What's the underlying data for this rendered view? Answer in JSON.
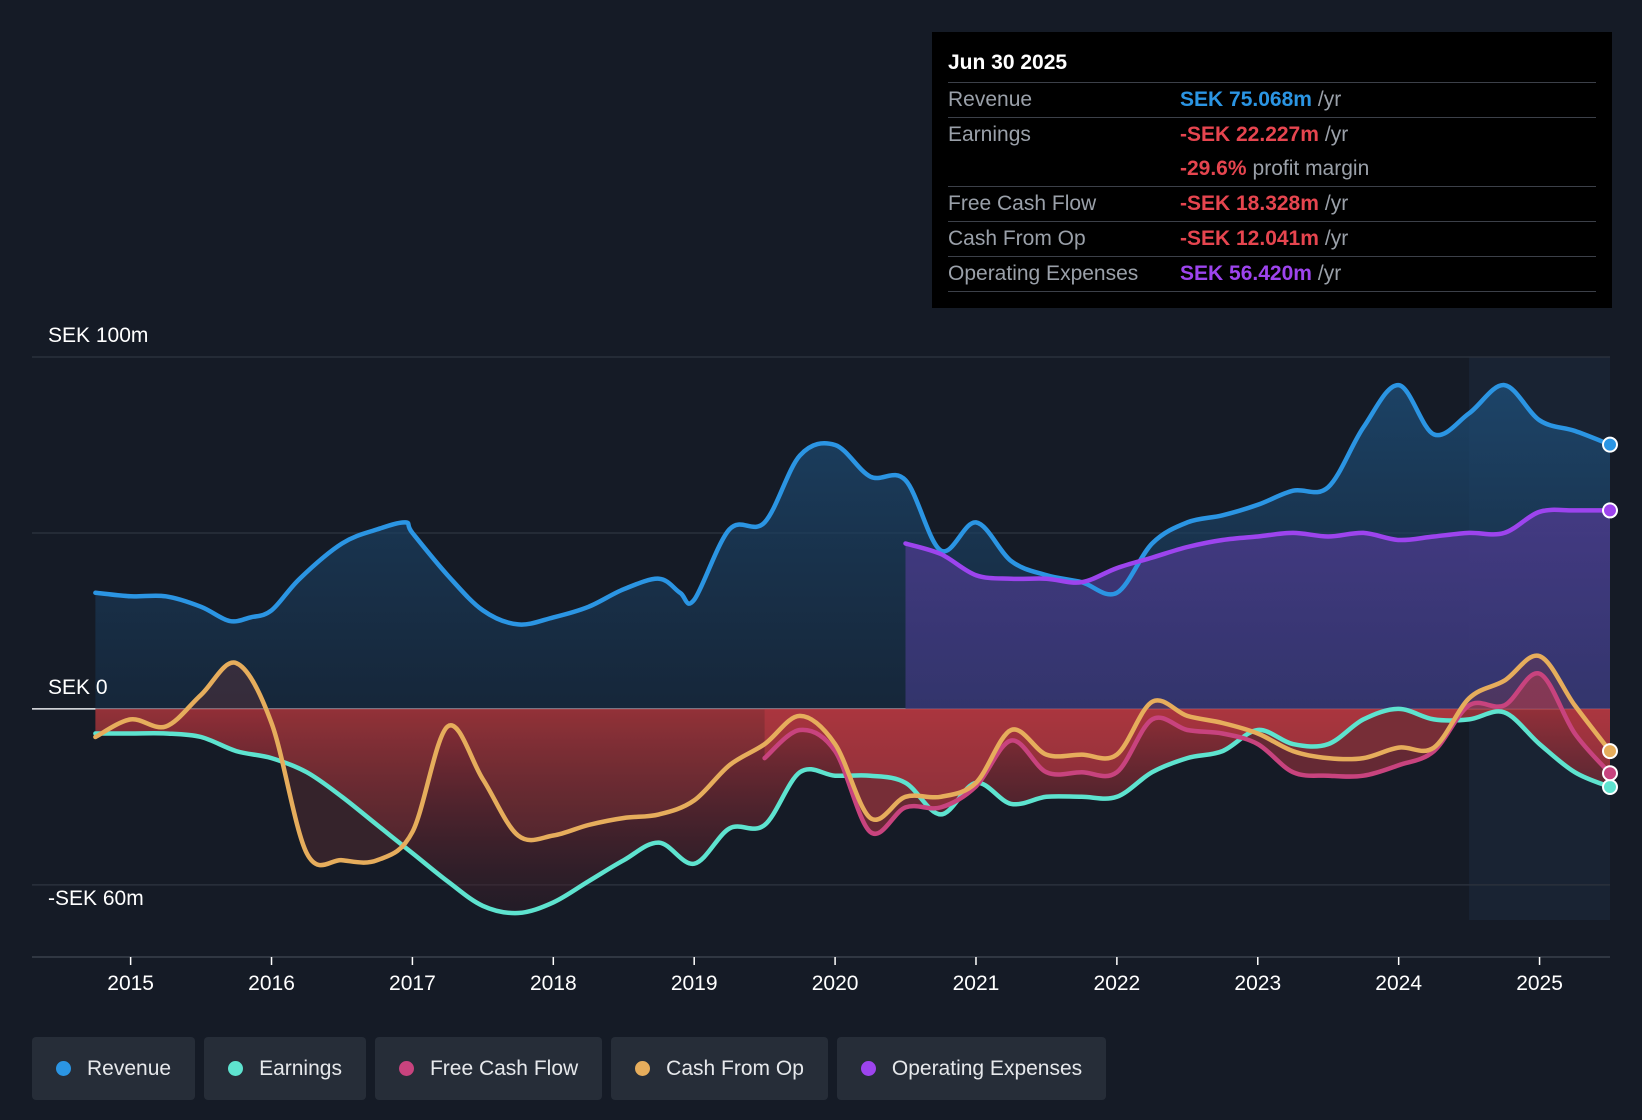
{
  "colors": {
    "revenue": "#2b95e3",
    "earnings": "#5ee3cf",
    "free_cash_flow": "#c8437e",
    "cash_from_op": "#e6ad5c",
    "operating_expenses": "#9d44ee",
    "negative_value": "#e6454f",
    "background": "#151b26"
  },
  "tooltip": {
    "date": "Jun 30 2025",
    "rows": [
      {
        "label": "Revenue",
        "value": "SEK 75.068m",
        "unit": "/yr",
        "color": "#2b95e3"
      },
      {
        "label": "Earnings",
        "value": "-SEK 22.227m",
        "unit": "/yr",
        "color": "#e6454f"
      },
      {
        "label": "",
        "value": "-29.6%",
        "unit": "profit margin",
        "color": "#e6454f"
      },
      {
        "label": "Free Cash Flow",
        "value": "-SEK 18.328m",
        "unit": "/yr",
        "color": "#e6454f"
      },
      {
        "label": "Cash From Op",
        "value": "-SEK 12.041m",
        "unit": "/yr",
        "color": "#e6454f"
      },
      {
        "label": "Operating Expenses",
        "value": "SEK 56.420m",
        "unit": "/yr",
        "color": "#9d44ee"
      }
    ]
  },
  "legend": [
    {
      "label": "Revenue",
      "color": "#2b95e3"
    },
    {
      "label": "Earnings",
      "color": "#5ee3cf"
    },
    {
      "label": "Free Cash Flow",
      "color": "#c8437e"
    },
    {
      "label": "Cash From Op",
      "color": "#e6ad5c"
    },
    {
      "label": "Operating Expenses",
      "color": "#9d44ee"
    }
  ],
  "chart_data": {
    "type": "line",
    "title": "",
    "xlabel": "",
    "ylabel": "",
    "x_range": [
      2014.3,
      2025.5
    ],
    "ylim": [
      -60,
      100
    ],
    "y_tick_labels": [
      {
        "value": 100,
        "label": "SEK 100m"
      },
      {
        "value": 0,
        "label": "SEK 0"
      },
      {
        "value": -60,
        "label": "-SEK 60m"
      }
    ],
    "x_ticks": [
      2015,
      2016,
      2017,
      2018,
      2019,
      2020,
      2021,
      2022,
      2023,
      2024,
      2025
    ],
    "x_tick_labels": [
      "2015",
      "2016",
      "2017",
      "2018",
      "2019",
      "2020",
      "2021",
      "2022",
      "2023",
      "2024",
      "2025"
    ],
    "highlight_start": 2024.5,
    "series": [
      {
        "name": "Revenue",
        "key": "revenue",
        "points": [
          [
            2014.75,
            33
          ],
          [
            2015,
            32
          ],
          [
            2015.25,
            32
          ],
          [
            2015.5,
            29
          ],
          [
            2015.7,
            25
          ],
          [
            2015.85,
            26
          ],
          [
            2016,
            28
          ],
          [
            2016.2,
            37
          ],
          [
            2016.5,
            47
          ],
          [
            2016.75,
            51
          ],
          [
            2016.95,
            53
          ],
          [
            2017,
            50
          ],
          [
            2017.25,
            38
          ],
          [
            2017.5,
            28
          ],
          [
            2017.75,
            24
          ],
          [
            2018,
            26
          ],
          [
            2018.25,
            29
          ],
          [
            2018.5,
            34
          ],
          [
            2018.75,
            37
          ],
          [
            2018.9,
            33
          ],
          [
            2019,
            31
          ],
          [
            2019.25,
            51
          ],
          [
            2019.5,
            53
          ],
          [
            2019.75,
            72
          ],
          [
            2020,
            75
          ],
          [
            2020.25,
            66
          ],
          [
            2020.5,
            65
          ],
          [
            2020.75,
            45
          ],
          [
            2021,
            53
          ],
          [
            2021.25,
            42
          ],
          [
            2021.5,
            38
          ],
          [
            2021.75,
            36
          ],
          [
            2022,
            33
          ],
          [
            2022.25,
            47
          ],
          [
            2022.5,
            53
          ],
          [
            2022.75,
            55
          ],
          [
            2023,
            58
          ],
          [
            2023.25,
            62
          ],
          [
            2023.5,
            63
          ],
          [
            2023.75,
            80
          ],
          [
            2024,
            92
          ],
          [
            2024.25,
            78
          ],
          [
            2024.5,
            84
          ],
          [
            2024.75,
            92
          ],
          [
            2025,
            82
          ],
          [
            2025.25,
            79
          ],
          [
            2025.5,
            75.1
          ]
        ]
      },
      {
        "name": "Operating Expenses",
        "key": "operating_expenses",
        "points": [
          [
            2020.5,
            47
          ],
          [
            2020.75,
            44
          ],
          [
            2021,
            38
          ],
          [
            2021.25,
            37
          ],
          [
            2021.5,
            37
          ],
          [
            2021.75,
            36
          ],
          [
            2022,
            40
          ],
          [
            2022.25,
            43
          ],
          [
            2022.5,
            46
          ],
          [
            2022.75,
            48
          ],
          [
            2023,
            49
          ],
          [
            2023.25,
            50
          ],
          [
            2023.5,
            49
          ],
          [
            2023.75,
            50
          ],
          [
            2024,
            48
          ],
          [
            2024.25,
            49
          ],
          [
            2024.5,
            50
          ],
          [
            2024.75,
            50
          ],
          [
            2025,
            56
          ],
          [
            2025.25,
            56.4
          ],
          [
            2025.5,
            56.4
          ]
        ]
      },
      {
        "name": "Earnings",
        "key": "earnings",
        "points": [
          [
            2014.75,
            -7
          ],
          [
            2015,
            -7
          ],
          [
            2015.25,
            -7
          ],
          [
            2015.5,
            -8
          ],
          [
            2015.75,
            -12
          ],
          [
            2016,
            -14
          ],
          [
            2016.25,
            -18
          ],
          [
            2016.5,
            -25
          ],
          [
            2016.75,
            -33
          ],
          [
            2017,
            -41
          ],
          [
            2017.25,
            -49
          ],
          [
            2017.5,
            -56
          ],
          [
            2017.75,
            -58
          ],
          [
            2018,
            -55
          ],
          [
            2018.25,
            -49
          ],
          [
            2018.5,
            -43
          ],
          [
            2018.75,
            -38
          ],
          [
            2019,
            -44
          ],
          [
            2019.25,
            -34
          ],
          [
            2019.5,
            -33
          ],
          [
            2019.75,
            -18
          ],
          [
            2020,
            -19
          ],
          [
            2020.25,
            -19
          ],
          [
            2020.5,
            -21
          ],
          [
            2020.75,
            -30
          ],
          [
            2021,
            -21
          ],
          [
            2021.25,
            -27
          ],
          [
            2021.5,
            -25
          ],
          [
            2021.75,
            -25
          ],
          [
            2022,
            -25
          ],
          [
            2022.25,
            -18
          ],
          [
            2022.5,
            -14
          ],
          [
            2022.75,
            -12
          ],
          [
            2023,
            -6
          ],
          [
            2023.25,
            -10
          ],
          [
            2023.5,
            -10
          ],
          [
            2023.75,
            -3
          ],
          [
            2024,
            0
          ],
          [
            2024.25,
            -3
          ],
          [
            2024.5,
            -3
          ],
          [
            2024.75,
            -1
          ],
          [
            2025,
            -10
          ],
          [
            2025.25,
            -18
          ],
          [
            2025.5,
            -22.2
          ]
        ]
      },
      {
        "name": "Free Cash Flow",
        "key": "free_cash_flow",
        "points": [
          [
            2019.5,
            -14
          ],
          [
            2019.75,
            -6
          ],
          [
            2020,
            -12
          ],
          [
            2020.25,
            -35
          ],
          [
            2020.5,
            -28
          ],
          [
            2020.75,
            -28
          ],
          [
            2021,
            -22
          ],
          [
            2021.25,
            -9
          ],
          [
            2021.5,
            -18
          ],
          [
            2021.75,
            -18
          ],
          [
            2022,
            -18
          ],
          [
            2022.25,
            -3
          ],
          [
            2022.5,
            -6
          ],
          [
            2022.75,
            -7
          ],
          [
            2023,
            -10
          ],
          [
            2023.25,
            -18
          ],
          [
            2023.5,
            -19
          ],
          [
            2023.75,
            -19
          ],
          [
            2024,
            -16
          ],
          [
            2024.25,
            -12
          ],
          [
            2024.5,
            1
          ],
          [
            2024.75,
            1
          ],
          [
            2025,
            10
          ],
          [
            2025.25,
            -7
          ],
          [
            2025.5,
            -18.3
          ]
        ]
      },
      {
        "name": "Cash From Op",
        "key": "cash_from_op",
        "points": [
          [
            2014.75,
            -8
          ],
          [
            2015,
            -3
          ],
          [
            2015.25,
            -5
          ],
          [
            2015.5,
            4
          ],
          [
            2015.75,
            13
          ],
          [
            2016,
            -4
          ],
          [
            2016.25,
            -41
          ],
          [
            2016.5,
            -43
          ],
          [
            2016.75,
            -43
          ],
          [
            2017,
            -35
          ],
          [
            2017.25,
            -5
          ],
          [
            2017.5,
            -20
          ],
          [
            2017.75,
            -36
          ],
          [
            2018,
            -36
          ],
          [
            2018.25,
            -33
          ],
          [
            2018.5,
            -31
          ],
          [
            2018.75,
            -30
          ],
          [
            2019,
            -26
          ],
          [
            2019.25,
            -16
          ],
          [
            2019.5,
            -10
          ],
          [
            2019.75,
            -2
          ],
          [
            2020,
            -10
          ],
          [
            2020.25,
            -31
          ],
          [
            2020.5,
            -25
          ],
          [
            2020.75,
            -25
          ],
          [
            2021,
            -21
          ],
          [
            2021.25,
            -6
          ],
          [
            2021.5,
            -13
          ],
          [
            2021.75,
            -13
          ],
          [
            2022,
            -13
          ],
          [
            2022.25,
            2
          ],
          [
            2022.5,
            -2
          ],
          [
            2022.75,
            -4
          ],
          [
            2023,
            -7
          ],
          [
            2023.25,
            -12
          ],
          [
            2023.5,
            -14
          ],
          [
            2023.75,
            -14
          ],
          [
            2024,
            -11
          ],
          [
            2024.25,
            -11
          ],
          [
            2024.5,
            3
          ],
          [
            2024.75,
            8
          ],
          [
            2025,
            15
          ],
          [
            2025.25,
            1
          ],
          [
            2025.5,
            -12
          ]
        ]
      }
    ]
  }
}
